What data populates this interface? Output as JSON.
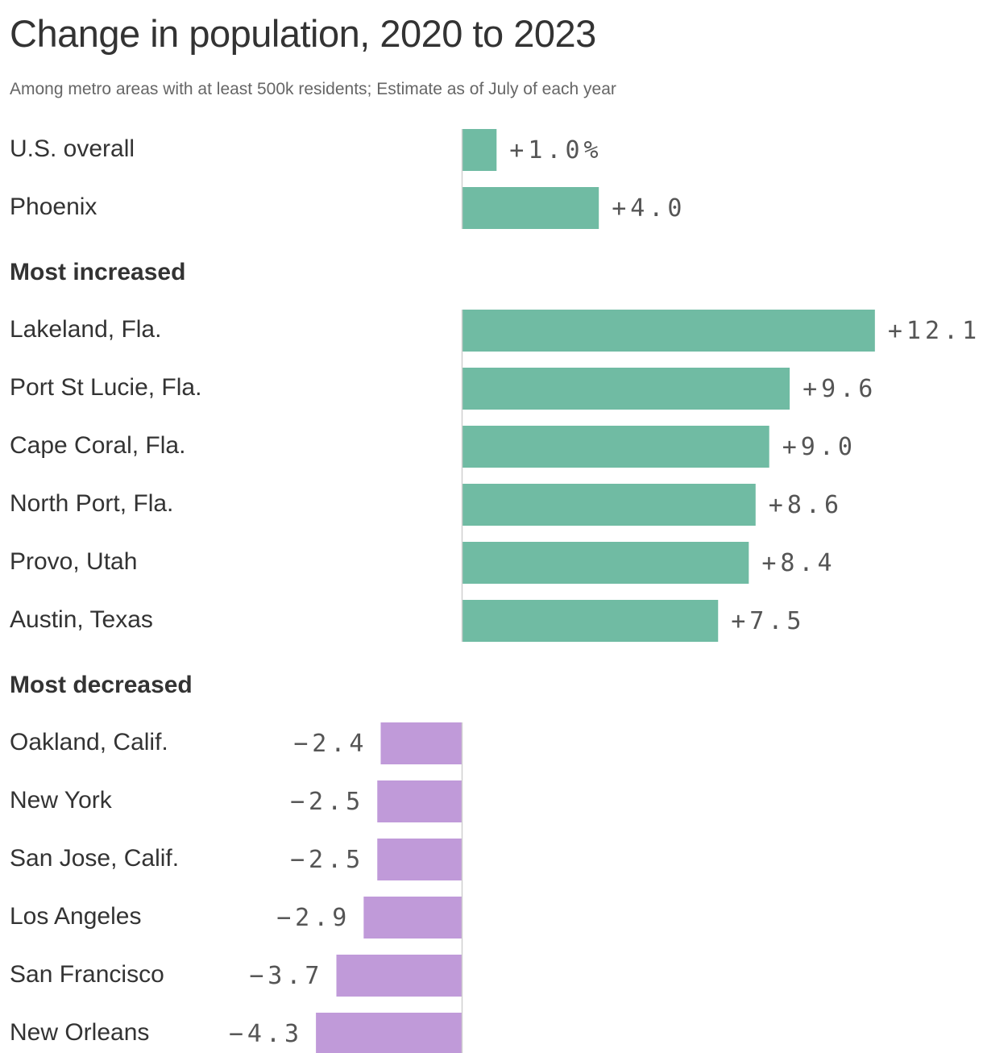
{
  "chart_data": {
    "type": "bar",
    "orientation": "horizontal",
    "title": "Change in population, 2020 to 2023",
    "subtitle": "Among metro areas with at least 500k residents; Estimate as of July of each year",
    "value_unit": "%",
    "colors": {
      "positive": "#70bba3",
      "negative": "#c09ad9",
      "axis": "#d0d0d0"
    },
    "groups": [
      {
        "label": "",
        "items": [
          {
            "name": "U.S. overall",
            "value": 1.0,
            "display": "+1.0%"
          },
          {
            "name": "Phoenix",
            "value": 4.0,
            "display": "+4.0"
          }
        ]
      },
      {
        "label": "Most increased",
        "items": [
          {
            "name": "Lakeland, Fla.",
            "value": 12.1,
            "display": "+12.1"
          },
          {
            "name": "Port St Lucie, Fla.",
            "value": 9.6,
            "display": "+9.6"
          },
          {
            "name": "Cape Coral, Fla.",
            "value": 9.0,
            "display": "+9.0"
          },
          {
            "name": "North Port, Fla.",
            "value": 8.6,
            "display": "+8.6"
          },
          {
            "name": "Provo, Utah",
            "value": 8.4,
            "display": "+8.4"
          },
          {
            "name": "Austin, Texas",
            "value": 7.5,
            "display": "+7.5"
          }
        ]
      },
      {
        "label": "Most decreased",
        "items": [
          {
            "name": "Oakland, Calif.",
            "value": -2.4,
            "display": "−2.4"
          },
          {
            "name": "New York",
            "value": -2.5,
            "display": "−2.5"
          },
          {
            "name": "San Jose, Calif.",
            "value": -2.5,
            "display": "−2.5"
          },
          {
            "name": "Los Angeles",
            "value": -2.9,
            "display": "−2.9"
          },
          {
            "name": "San Francisco",
            "value": -3.7,
            "display": "−3.7"
          },
          {
            "name": "New Orleans",
            "value": -4.3,
            "display": "−4.3"
          }
        ]
      }
    ]
  }
}
